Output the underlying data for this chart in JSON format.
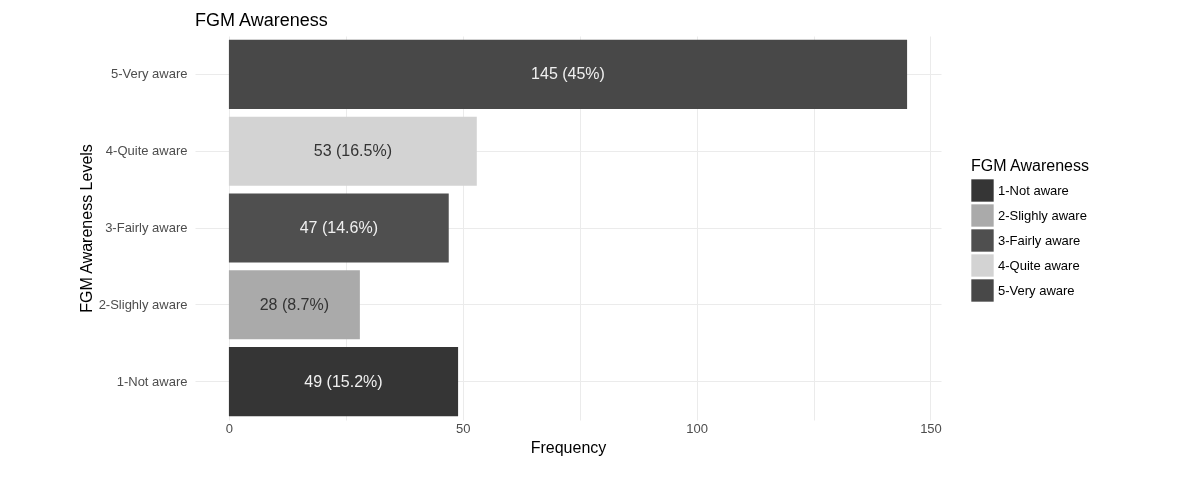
{
  "chart_data": {
    "type": "bar",
    "orientation": "horizontal",
    "stacked": true,
    "title": "FGM Awareness",
    "xlabel": "Frequency",
    "ylabel": "FGM Awareness Levels",
    "legend_title": "FGM Awareness",
    "legend": "right",
    "categories": [
      "5-Very aware",
      "4-Quite aware",
      "3-Fairly aware",
      "2-Slighly aware",
      "1-Not aware"
    ],
    "series": [
      {
        "name": "1-Not aware",
        "color": "#353535",
        "values": [
          null,
          null,
          null,
          null,
          49
        ],
        "value_labels": [
          null,
          null,
          null,
          null,
          "49 (15.2%)"
        ]
      },
      {
        "name": "2-Slighly aware",
        "color": "#aaaaaa",
        "values": [
          null,
          null,
          null,
          28,
          null
        ],
        "value_labels": [
          null,
          null,
          null,
          "28 (8.7%)",
          null
        ]
      },
      {
        "name": "3-Fairly aware",
        "color": "#4f4f4f",
        "values": [
          null,
          null,
          47,
          null,
          null
        ],
        "value_labels": [
          null,
          null,
          "47 (14.6%)",
          null,
          null
        ]
      },
      {
        "name": "4-Quite aware",
        "color": "#d3d3d3",
        "values": [
          null,
          53,
          null,
          null,
          null
        ],
        "value_labels": [
          null,
          "53 (16.5%)",
          null,
          null,
          null
        ]
      },
      {
        "name": "5-Very aware",
        "color": "#484848",
        "values": [
          145,
          null,
          null,
          null,
          null
        ],
        "value_labels": [
          "145 (45%)",
          null,
          null,
          null,
          null
        ]
      }
    ],
    "xlim": [
      -7.25,
      152.25
    ],
    "xticks": [
      0,
      {
        "value": 25,
        "label": null
      },
      50,
      {
        "value": 75,
        "label": null
      },
      100,
      {
        "value": 125,
        "label": null
      },
      150
    ],
    "grid": true
  }
}
